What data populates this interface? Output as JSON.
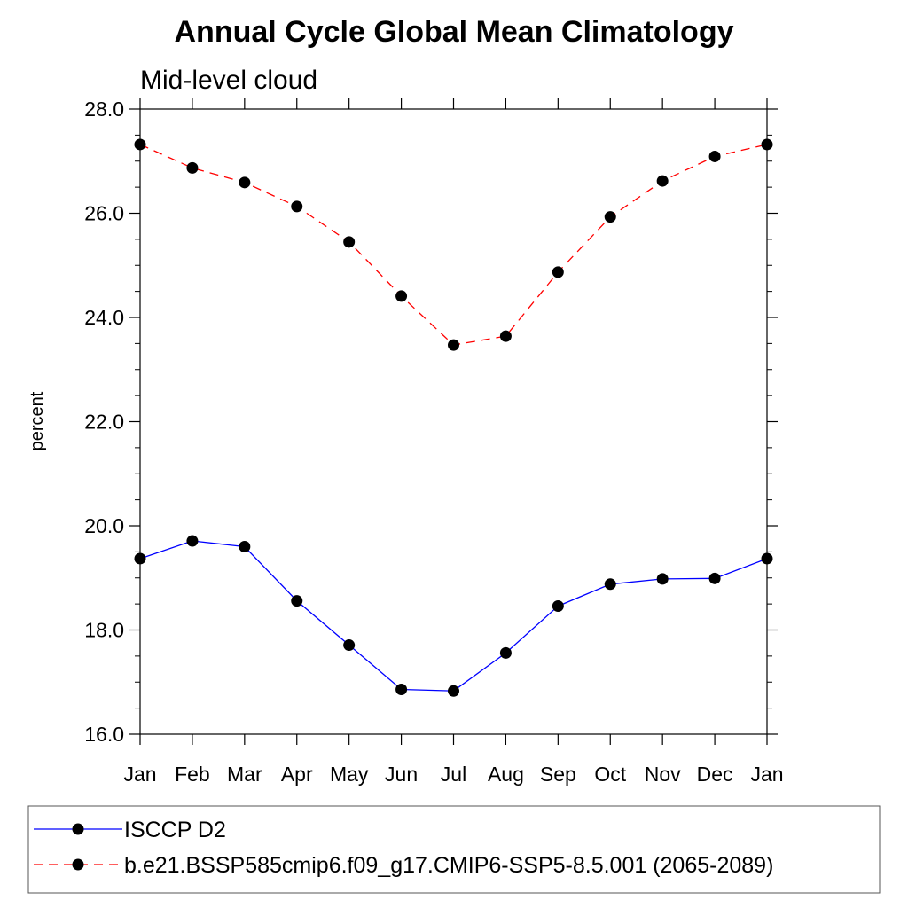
{
  "chart_data": {
    "type": "line",
    "title": "Annual Cycle Global Mean Climatology",
    "subtitle": "Mid-level cloud",
    "ylabel": "percent",
    "xlabel": "",
    "categories": [
      "Jan",
      "Feb",
      "Mar",
      "Apr",
      "May",
      "Jun",
      "Jul",
      "Aug",
      "Sep",
      "Oct",
      "Nov",
      "Dec",
      "Jan"
    ],
    "ylim": [
      16.0,
      28.0
    ],
    "yticks": [
      "16.0",
      "18.0",
      "20.0",
      "22.0",
      "24.0",
      "26.0",
      "28.0"
    ],
    "series": [
      {
        "name": "ISCCP D2",
        "color": "#0000ff",
        "dash": "solid",
        "marker": "filled-circle",
        "values": [
          19.37,
          19.71,
          19.6,
          18.56,
          17.71,
          16.86,
          16.83,
          17.56,
          18.46,
          18.88,
          18.98,
          18.99,
          19.37
        ]
      },
      {
        "name": "b.e21.BSSP585cmip6.f09_g17.CMIP6-SSP5-8.5.001 (2065-2089)",
        "color": "#ff0000",
        "dash": "dashed",
        "marker": "filled-circle",
        "values": [
          27.32,
          26.87,
          26.59,
          26.13,
          25.45,
          24.41,
          23.47,
          23.64,
          24.87,
          25.93,
          26.62,
          27.09,
          27.32
        ]
      }
    ],
    "grid": false,
    "legend_position": "bottom"
  }
}
